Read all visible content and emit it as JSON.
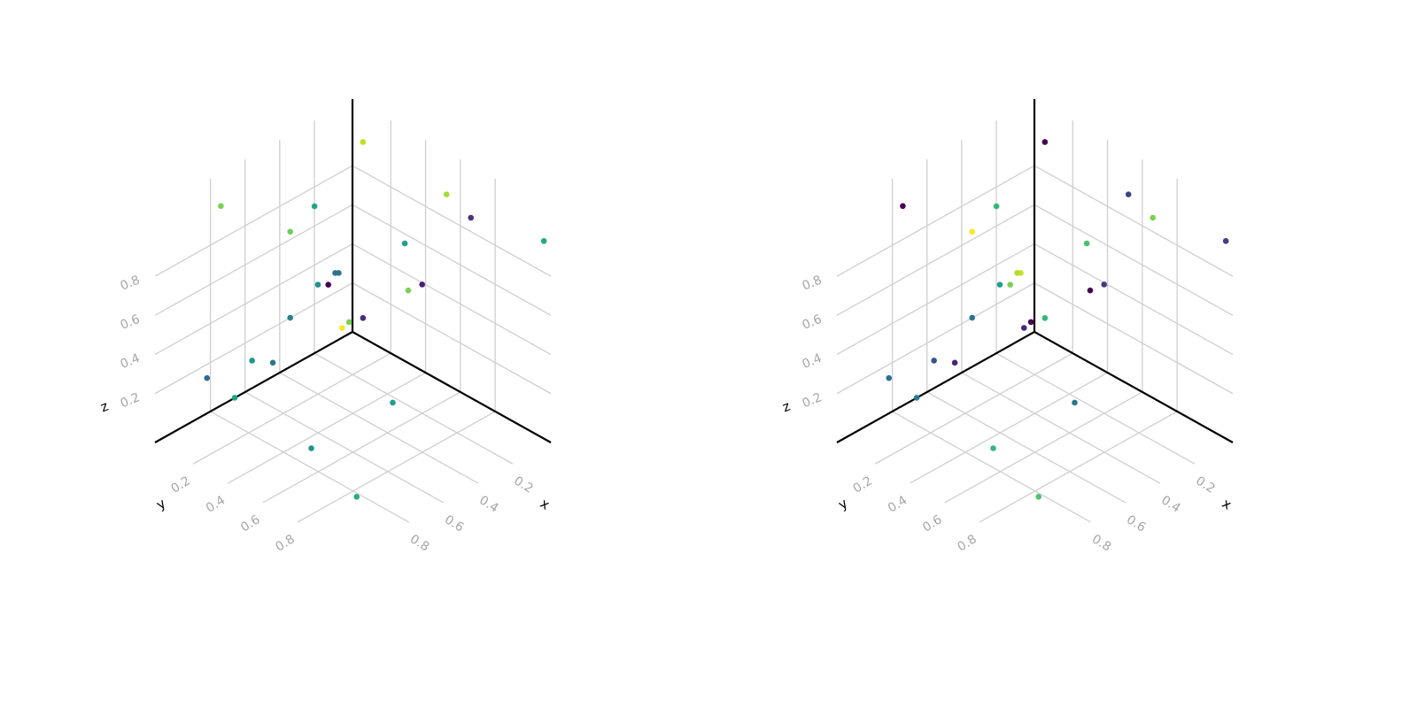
{
  "chart_data": [
    {
      "type": "scatter3d",
      "xlabel": "x",
      "ylabel": "y",
      "zlabel": "z",
      "x": [
        0.03,
        0.81,
        0.39,
        0.06,
        0.09,
        0.46,
        0.13,
        0.0,
        0.17,
        0.18,
        0.28,
        0.2,
        0.08,
        0.07,
        0.46,
        0.04,
        0.05,
        0.06,
        0.67,
        0.51,
        0.9,
        0.72,
        0.29,
        0.75,
        0.87
      ],
      "y": [
        0.09,
        0.05,
        0.17,
        0.6,
        0.77,
        0.1,
        0.43,
        1.1,
        0.09,
        0.08,
        0.08,
        0.06,
        0.48,
        0.39,
        0.1,
        0.02,
        0.11,
        0.0,
        0.09,
        0.05,
        0.06,
        0.04,
        0.52,
        0.51,
        0.89
      ],
      "z": [
        1.0,
        1.04,
        0.89,
        1.0,
        0.98,
        0.76,
        0.7,
        0.98,
        0.4,
        0.4,
        0.39,
        0.34,
        0.49,
        0.41,
        0.32,
        0.05,
        0.12,
        0.02,
        0.2,
        0.09,
        0.21,
        0.01,
        0.01,
        0.0,
        0.0
      ],
      "colors": [
        "#c2df23",
        "#7ad151",
        "#21a685",
        "#a5db36",
        "#46337e",
        "#6ece58",
        "#1fa187",
        "#22a884",
        "#2a788e",
        "#2c728e",
        "#21918c",
        "#440154",
        "#482173",
        "#7ad151",
        "#26828e",
        "#7ad151",
        "#472d7b",
        "#fde725",
        "#1f968b",
        "#2a788e",
        "#31688e",
        "#20a486",
        "#1fa187",
        "#1f948c",
        "#27ad81"
      ],
      "xlim": [
        -0.02,
        1.12
      ],
      "ylim": [
        -0.02,
        1.12
      ],
      "zlim": [
        -0.05,
        1.14
      ],
      "xticks": [
        0.2,
        0.4,
        0.6,
        0.8
      ],
      "yticks": [
        0.2,
        0.4,
        0.6,
        0.8
      ],
      "zticks": [
        0.2,
        0.4,
        0.6,
        0.8
      ]
    },
    {
      "type": "scatter3d",
      "xlabel": "x",
      "ylabel": "y",
      "zlabel": "z",
      "x": [
        0.03,
        0.81,
        0.39,
        0.06,
        0.09,
        0.46,
        0.13,
        0.0,
        0.17,
        0.18,
        0.28,
        0.2,
        0.08,
        0.07,
        0.46,
        0.04,
        0.05,
        0.06,
        0.67,
        0.51,
        0.9,
        0.72,
        0.29,
        0.75,
        0.87
      ],
      "y": [
        0.09,
        0.05,
        0.17,
        0.6,
        0.77,
        0.1,
        0.43,
        1.1,
        0.09,
        0.08,
        0.08,
        0.06,
        0.48,
        0.39,
        0.1,
        0.02,
        0.11,
        0.0,
        0.09,
        0.05,
        0.06,
        0.04,
        0.52,
        0.51,
        0.89
      ],
      "z": [
        1.0,
        1.04,
        0.89,
        1.0,
        0.98,
        0.76,
        0.7,
        0.98,
        0.4,
        0.4,
        0.39,
        0.34,
        0.49,
        0.41,
        0.32,
        0.05,
        0.12,
        0.02,
        0.2,
        0.09,
        0.21,
        0.01,
        0.01,
        0.0,
        0.0
      ],
      "colors": [
        "#440154",
        "#440154",
        "#35b779",
        "#414487",
        "#7ad151",
        "#fde725",
        "#4ac16d",
        "#433e85",
        "#c8e020",
        "#b5de2b",
        "#1fa187",
        "#7ad151",
        "#443983",
        "#440154",
        "#2c728e",
        "#440154",
        "#35b779",
        "#482878",
        "#3b528b",
        "#482475",
        "#2c728e",
        "#2a788e",
        "#2a788e",
        "#35b779",
        "#4ec36b"
      ],
      "xlim": [
        -0.02,
        1.12
      ],
      "ylim": [
        -0.02,
        1.12
      ],
      "zlim": [
        -0.05,
        1.14
      ],
      "xticks": [
        0.2,
        0.4,
        0.6,
        0.8
      ],
      "yticks": [
        0.2,
        0.4,
        0.6,
        0.8
      ],
      "zticks": [
        0.2,
        0.4,
        0.6,
        0.8
      ]
    }
  ]
}
